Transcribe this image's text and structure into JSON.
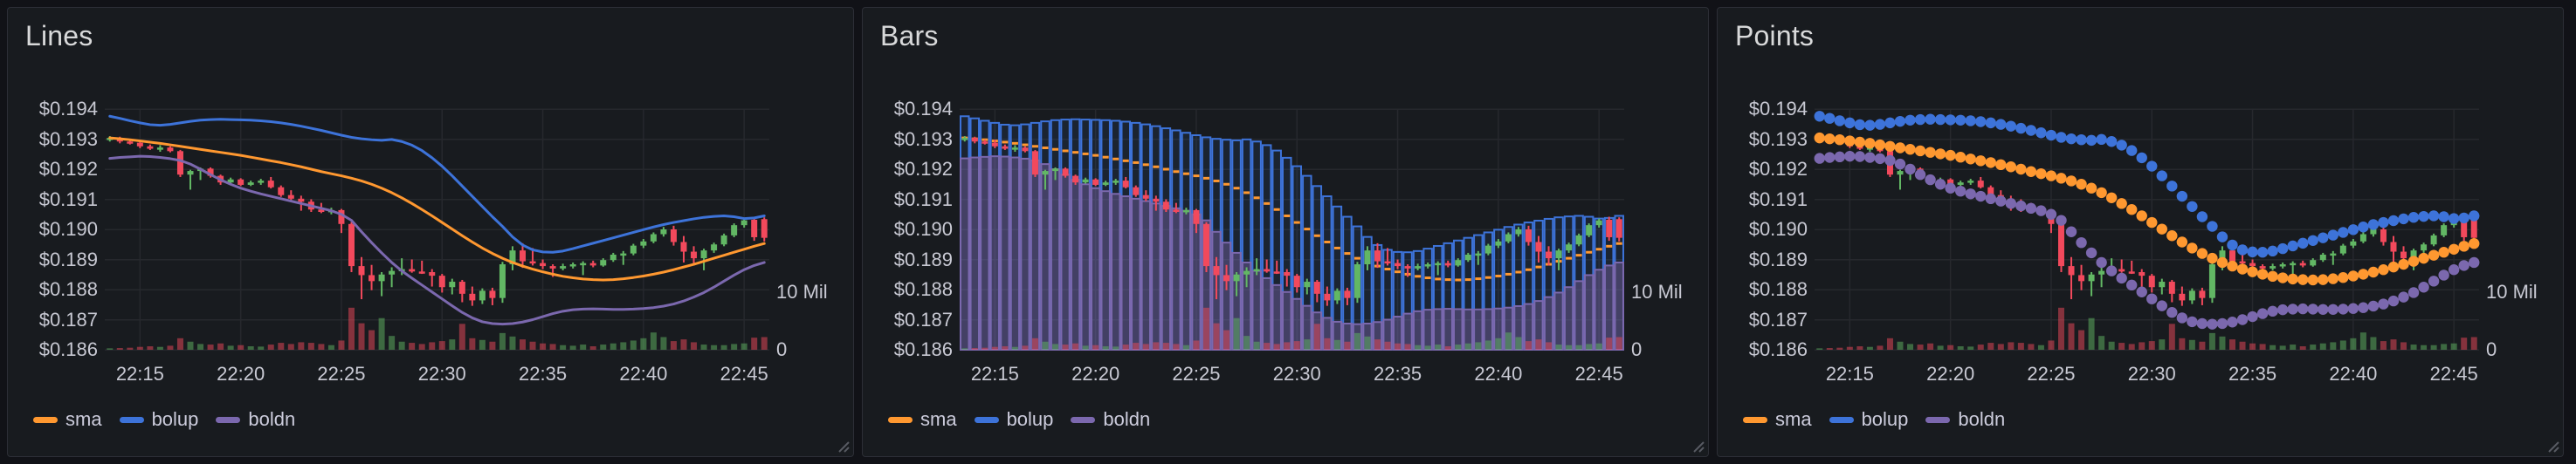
{
  "app": {
    "background": "#111217",
    "panel_background": "#181B1F",
    "panel_border": "#2c2e36",
    "grid_color": "rgba(204,204,220,0.08)",
    "text_color": "#c8c9d3"
  },
  "panels": [
    {
      "title": "Lines",
      "mode": "line"
    },
    {
      "title": "Bars",
      "mode": "bars"
    },
    {
      "title": "Points",
      "mode": "points"
    }
  ],
  "legend": {
    "items": [
      {
        "label": "sma",
        "color": "#FF9830"
      },
      {
        "label": "bolup",
        "color": "#3D73D9"
      },
      {
        "label": "boldn",
        "color": "#7B68AE"
      }
    ]
  },
  "chart_data": {
    "type": "candlestick",
    "title": "Candlestick price chart with SMA and Bollinger band overlays plus volume (3 panels share identical data; overlays drawn as lines, bars, points respectively)",
    "panel_modes": [
      "line",
      "bars",
      "points"
    ],
    "time_start": "22:13:30",
    "time_step_seconds": 30,
    "x_tick_labels": [
      "22:15",
      "22:20",
      "22:25",
      "22:30",
      "22:35",
      "22:40",
      "22:45"
    ],
    "x_tick_indices": [
      3,
      13,
      23,
      33,
      43,
      53,
      63
    ],
    "y_tick_labels": [
      "$0.194",
      "$0.193",
      "$0.192",
      "$0.191",
      "$0.190",
      "$0.189",
      "$0.188",
      "$0.187",
      "$0.186"
    ],
    "ylim": [
      0.186,
      0.194
    ],
    "right_axis_labels": [
      "10 Mil",
      "0"
    ],
    "volume_axis_max": 10000000,
    "volume_unit": "millions",
    "candle_up_color": "#62B764",
    "candle_down_color": "#F2495C",
    "candles_format": [
      "open",
      "high",
      "low",
      "close",
      "volume_millions"
    ],
    "candles": [
      [
        0.19298,
        0.1931,
        0.19292,
        0.19304,
        0.25
      ],
      [
        0.19304,
        0.19308,
        0.19286,
        0.19292,
        0.3
      ],
      [
        0.19292,
        0.19298,
        0.19282,
        0.19288,
        0.35
      ],
      [
        0.19288,
        0.19298,
        0.1927,
        0.19276,
        0.5
      ],
      [
        0.19276,
        0.19282,
        0.19264,
        0.19268,
        0.6
      ],
      [
        0.19268,
        0.1928,
        0.19258,
        0.19272,
        0.5
      ],
      [
        0.19272,
        0.19276,
        0.19256,
        0.1926,
        0.7
      ],
      [
        0.1926,
        0.19264,
        0.19174,
        0.19182,
        2.0
      ],
      [
        0.19182,
        0.19198,
        0.19132,
        0.19194,
        1.4
      ],
      [
        0.19194,
        0.19206,
        0.19164,
        0.19202,
        1.0
      ],
      [
        0.19202,
        0.19206,
        0.19172,
        0.19178,
        0.9
      ],
      [
        0.19178,
        0.19182,
        0.19148,
        0.19156,
        1.1
      ],
      [
        0.19156,
        0.19172,
        0.19152,
        0.19166,
        0.7
      ],
      [
        0.19166,
        0.1917,
        0.19144,
        0.19148,
        0.8
      ],
      [
        0.19148,
        0.19162,
        0.19144,
        0.19156,
        0.6
      ],
      [
        0.19156,
        0.19168,
        0.19148,
        0.19162,
        0.55
      ],
      [
        0.19162,
        0.19174,
        0.19136,
        0.1914,
        0.9
      ],
      [
        0.1914,
        0.19146,
        0.19108,
        0.19114,
        1.2
      ],
      [
        0.19114,
        0.1913,
        0.19094,
        0.19102,
        1.0
      ],
      [
        0.19102,
        0.19112,
        0.19062,
        0.19092,
        1.3
      ],
      [
        0.19092,
        0.191,
        0.19058,
        0.19066,
        1.2
      ],
      [
        0.19066,
        0.19088,
        0.19054,
        0.19058,
        1.0
      ],
      [
        0.19058,
        0.19072,
        0.1905,
        0.19064,
        0.8
      ],
      [
        0.19064,
        0.19068,
        0.18988,
        0.19018,
        1.6
      ],
      [
        0.19018,
        0.19024,
        0.18858,
        0.18878,
        7.3
      ],
      [
        0.18878,
        0.18908,
        0.18768,
        0.18848,
        4.6
      ],
      [
        0.18848,
        0.18882,
        0.18798,
        0.18828,
        3.4
      ],
      [
        0.18828,
        0.18858,
        0.18778,
        0.1885,
        5.5
      ],
      [
        0.1885,
        0.18874,
        0.18808,
        0.18862,
        2.4
      ],
      [
        0.18862,
        0.18904,
        0.18848,
        0.18868,
        1.4
      ],
      [
        0.18868,
        0.189,
        0.18856,
        0.1886,
        1.2
      ],
      [
        0.1886,
        0.18896,
        0.18852,
        0.18858,
        1.0
      ],
      [
        0.18858,
        0.18868,
        0.1881,
        0.18846,
        1.3
      ],
      [
        0.18846,
        0.18852,
        0.1879,
        0.18808,
        1.5
      ],
      [
        0.18808,
        0.18836,
        0.18784,
        0.18826,
        1.8
      ],
      [
        0.18826,
        0.18832,
        0.18758,
        0.18786,
        4.5
      ],
      [
        0.18786,
        0.1881,
        0.18746,
        0.18764,
        2.0
      ],
      [
        0.18764,
        0.18804,
        0.18752,
        0.18796,
        1.7
      ],
      [
        0.18796,
        0.18806,
        0.18748,
        0.18772,
        1.4
      ],
      [
        0.18772,
        0.18892,
        0.18756,
        0.18884,
        2.9
      ],
      [
        0.18884,
        0.18944,
        0.18864,
        0.1893,
        2.3
      ],
      [
        0.1893,
        0.18954,
        0.18872,
        0.18894,
        1.8
      ],
      [
        0.18894,
        0.18938,
        0.1888,
        0.18888,
        1.4
      ],
      [
        0.18888,
        0.189,
        0.18868,
        0.18878,
        1.1
      ],
      [
        0.18878,
        0.18884,
        0.18842,
        0.1887,
        1.0
      ],
      [
        0.1887,
        0.18886,
        0.18864,
        0.18878,
        0.8
      ],
      [
        0.18878,
        0.1889,
        0.1887,
        0.18884,
        0.7
      ],
      [
        0.18884,
        0.18894,
        0.18848,
        0.18888,
        0.9
      ],
      [
        0.18888,
        0.18896,
        0.18874,
        0.1888,
        0.6
      ],
      [
        0.1888,
        0.18904,
        0.18876,
        0.18898,
        0.9
      ],
      [
        0.18898,
        0.18922,
        0.18892,
        0.18916,
        1.1
      ],
      [
        0.18916,
        0.18928,
        0.18882,
        0.1892,
        1.3
      ],
      [
        0.1892,
        0.18952,
        0.18914,
        0.18946,
        1.6
      ],
      [
        0.18946,
        0.18968,
        0.18938,
        0.1896,
        2.0
      ],
      [
        0.1896,
        0.1899,
        0.18954,
        0.18984,
        3.0
      ],
      [
        0.18984,
        0.19008,
        0.18976,
        0.19,
        2.2
      ],
      [
        0.19,
        0.19012,
        0.18946,
        0.18958,
        1.5
      ],
      [
        0.18958,
        0.18978,
        0.1889,
        0.18926,
        1.8
      ],
      [
        0.18926,
        0.18944,
        0.1888,
        0.18904,
        1.3
      ],
      [
        0.18904,
        0.18936,
        0.18864,
        0.1893,
        0.9
      ],
      [
        0.1893,
        0.18956,
        0.18922,
        0.1895,
        0.8
      ],
      [
        0.1895,
        0.18986,
        0.18944,
        0.1898,
        0.8
      ],
      [
        0.1898,
        0.1902,
        0.18974,
        0.19014,
        1.0
      ],
      [
        0.19014,
        0.19036,
        0.19006,
        0.1903,
        1.1
      ],
      [
        0.19032,
        0.19042,
        0.18962,
        0.18974,
        2.1
      ],
      [
        0.19034,
        0.1904,
        0.1896,
        0.18972,
        2.2
      ]
    ],
    "series": [
      {
        "name": "sma",
        "color": "#FF9830",
        "values": [
          0.19304,
          0.19301,
          0.19298,
          0.19294,
          0.1929,
          0.19286,
          0.19281,
          0.19276,
          0.19271,
          0.19266,
          0.19261,
          0.19256,
          0.19251,
          0.19246,
          0.1924,
          0.19234,
          0.19228,
          0.19222,
          0.19215,
          0.19208,
          0.192,
          0.19192,
          0.19185,
          0.19178,
          0.1917,
          0.19161,
          0.1915,
          0.19137,
          0.19122,
          0.19105,
          0.19086,
          0.19066,
          0.19045,
          0.19023,
          0.19001,
          0.18979,
          0.18958,
          0.18938,
          0.1892,
          0.18904,
          0.1889,
          0.18878,
          0.18868,
          0.18859,
          0.18851,
          0.18844,
          0.18839,
          0.18835,
          0.18833,
          0.18832,
          0.18833,
          0.18836,
          0.1884,
          0.18845,
          0.18851,
          0.18858,
          0.18866,
          0.18875,
          0.18884,
          0.18894,
          0.18904,
          0.18914,
          0.18924,
          0.18934,
          0.18944,
          0.18953
        ]
      },
      {
        "name": "bolup",
        "color": "#3D73D9",
        "values": [
          0.19376,
          0.19369,
          0.19361,
          0.19354,
          0.19348,
          0.19346,
          0.19349,
          0.19354,
          0.19359,
          0.19363,
          0.19365,
          0.19366,
          0.19365,
          0.19364,
          0.19363,
          0.19361,
          0.19358,
          0.19354,
          0.19349,
          0.19343,
          0.19336,
          0.19329,
          0.19321,
          0.19313,
          0.19306,
          0.19301,
          0.19298,
          0.19296,
          0.19299,
          0.19292,
          0.1928,
          0.19262,
          0.19238,
          0.1921,
          0.19178,
          0.19144,
          0.1911,
          0.19076,
          0.19042,
          0.1901,
          0.18975,
          0.18948,
          0.18932,
          0.18925,
          0.18924,
          0.18928,
          0.18936,
          0.18945,
          0.18954,
          0.18963,
          0.18972,
          0.18981,
          0.1899,
          0.18999,
          0.19008,
          0.19016,
          0.19023,
          0.19029,
          0.19035,
          0.1904,
          0.19043,
          0.19045,
          0.19042,
          0.19036,
          0.19038,
          0.19045
        ]
      },
      {
        "name": "boldn",
        "color": "#7B68AE",
        "values": [
          0.19236,
          0.19239,
          0.19241,
          0.19243,
          0.19242,
          0.19239,
          0.19235,
          0.19229,
          0.19217,
          0.192,
          0.19182,
          0.19165,
          0.1915,
          0.19137,
          0.19127,
          0.19118,
          0.1911,
          0.19102,
          0.19094,
          0.19086,
          0.19078,
          0.1907,
          0.19062,
          0.1905,
          0.1903,
          0.18992,
          0.18956,
          0.18922,
          0.1889,
          0.18862,
          0.18838,
          0.18815,
          0.18792,
          0.18769,
          0.18746,
          0.18724,
          0.18706,
          0.18693,
          0.18687,
          0.18685,
          0.18687,
          0.18692,
          0.187,
          0.1871,
          0.1872,
          0.18728,
          0.18733,
          0.18735,
          0.18736,
          0.18735,
          0.18734,
          0.18734,
          0.18735,
          0.18737,
          0.1874,
          0.18745,
          0.18752,
          0.18762,
          0.18775,
          0.1879,
          0.18808,
          0.18828,
          0.18848,
          0.18866,
          0.1888,
          0.1889
        ]
      }
    ]
  }
}
